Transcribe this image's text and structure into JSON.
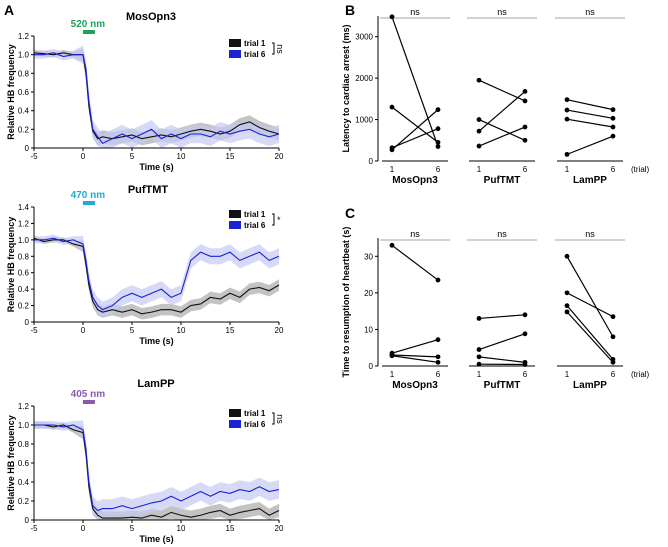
{
  "panels": [
    {
      "letter": "A"
    },
    {
      "letter": "B"
    },
    {
      "letter": "C"
    }
  ],
  "chart_data": [
    {
      "type": "line",
      "panel": "A",
      "title": "MosOpn3",
      "stimulus": {
        "label": "520 nm",
        "color": "#1fa35a"
      },
      "xlabel": "Time (s)",
      "ylabel": "Relative HB frequency",
      "xlim": [
        -5,
        20
      ],
      "ylim": [
        0,
        1.2
      ],
      "xticks": [
        "-5",
        "0",
        "5",
        "10",
        "15",
        "20"
      ],
      "yticks": [
        "0",
        "0.2",
        "0.4",
        "0.6",
        "0.8",
        "1.0",
        "1.2"
      ],
      "legend": [
        "trial 1",
        "trial 6"
      ],
      "significance": "ns",
      "series": [
        {
          "name": "trial 1",
          "color": "#111111",
          "band": "#aaaaaa",
          "x": [
            -5,
            -4,
            -3,
            -2,
            -1,
            0,
            0.3,
            0.6,
            1,
            1.5,
            2,
            3,
            4,
            5,
            6,
            7,
            8,
            9,
            10,
            11,
            12,
            13,
            14,
            15,
            16,
            17,
            18,
            19,
            20
          ],
          "y": [
            1.02,
            1.01,
            1.0,
            1.02,
            1.0,
            1.0,
            0.8,
            0.45,
            0.18,
            0.1,
            0.12,
            0.1,
            0.12,
            0.14,
            0.1,
            0.12,
            0.14,
            0.12,
            0.15,
            0.18,
            0.2,
            0.18,
            0.15,
            0.18,
            0.25,
            0.28,
            0.22,
            0.18,
            0.15
          ]
        },
        {
          "name": "trial 6",
          "color": "#1a22d6",
          "band": "#c5cbf3",
          "x": [
            -5,
            -4,
            -3,
            -2,
            -1,
            0,
            0.3,
            0.6,
            1,
            1.5,
            2,
            3,
            4,
            5,
            6,
            7,
            8,
            9,
            10,
            11,
            12,
            13,
            14,
            15,
            16,
            17,
            18,
            19,
            20
          ],
          "y": [
            1.0,
            1.0,
            1.02,
            0.98,
            1.0,
            1.0,
            0.85,
            0.5,
            0.2,
            0.12,
            0.05,
            0.1,
            0.15,
            0.1,
            0.15,
            0.2,
            0.1,
            0.15,
            0.1,
            0.15,
            0.15,
            0.12,
            0.18,
            0.15,
            0.18,
            0.2,
            0.15,
            0.12,
            0.15
          ]
        }
      ]
    },
    {
      "type": "line",
      "panel": "A",
      "title": "PufTMT",
      "stimulus": {
        "label": "470 nm",
        "color": "#21a9d8"
      },
      "xlabel": "Time (s)",
      "ylabel": "Relative HB frequency",
      "xlim": [
        -5,
        20
      ],
      "ylim": [
        0,
        1.4
      ],
      "xticks": [
        "-5",
        "0",
        "5",
        "10",
        "15",
        "20"
      ],
      "yticks": [
        "0",
        "0.2",
        "0.4",
        "0.6",
        "0.8",
        "1.0",
        "1.2",
        "1.4"
      ],
      "legend": [
        "trial 1",
        "trial 6"
      ],
      "significance": "*",
      "series": [
        {
          "name": "trial 1",
          "color": "#111111",
          "band": "#aaaaaa",
          "x": [
            -5,
            -4,
            -3,
            -2,
            -1,
            0,
            0.3,
            0.6,
            1,
            1.5,
            2,
            3,
            4,
            5,
            6,
            7,
            8,
            9,
            10,
            11,
            12,
            13,
            14,
            15,
            16,
            17,
            18,
            19,
            20
          ],
          "y": [
            1.02,
            0.98,
            1.0,
            1.0,
            0.95,
            0.92,
            0.7,
            0.45,
            0.25,
            0.15,
            0.12,
            0.15,
            0.12,
            0.15,
            0.1,
            0.12,
            0.15,
            0.15,
            0.12,
            0.2,
            0.22,
            0.3,
            0.28,
            0.35,
            0.3,
            0.4,
            0.42,
            0.38,
            0.45
          ]
        },
        {
          "name": "trial 6",
          "color": "#1a22d6",
          "band": "#c5cbf3",
          "x": [
            -5,
            -4,
            -3,
            -2,
            -1,
            0,
            0.3,
            0.6,
            1,
            1.5,
            2,
            3,
            4,
            5,
            6,
            7,
            8,
            9,
            10,
            11,
            12,
            13,
            14,
            15,
            16,
            17,
            18,
            19,
            20
          ],
          "y": [
            1.0,
            1.0,
            1.02,
            0.98,
            1.0,
            0.95,
            0.75,
            0.5,
            0.3,
            0.2,
            0.15,
            0.2,
            0.3,
            0.35,
            0.3,
            0.35,
            0.4,
            0.3,
            0.35,
            0.75,
            0.85,
            0.8,
            0.8,
            0.85,
            0.75,
            0.8,
            0.85,
            0.75,
            0.8
          ]
        }
      ]
    },
    {
      "type": "line",
      "panel": "A",
      "title": "LamPP",
      "stimulus": {
        "label": "405 nm",
        "color": "#8b5aa8"
      },
      "xlabel": "Time (s)",
      "ylabel": "Relative HB frequency",
      "xlim": [
        -5,
        20
      ],
      "ylim": [
        0,
        1.2
      ],
      "xticks": [
        "-5",
        "0",
        "5",
        "10",
        "15",
        "20"
      ],
      "yticks": [
        "0",
        "0.2",
        "0.4",
        "0.6",
        "0.8",
        "1.0",
        "1.2"
      ],
      "legend": [
        "trial 1",
        "trial 6"
      ],
      "significance": "ns",
      "series": [
        {
          "name": "trial 1",
          "color": "#111111",
          "band": "#aaaaaa",
          "x": [
            -5,
            -4,
            -3,
            -2,
            -1,
            0,
            0.3,
            0.6,
            1,
            1.5,
            2,
            3,
            4,
            5,
            6,
            7,
            8,
            9,
            10,
            11,
            12,
            13,
            14,
            15,
            16,
            17,
            18,
            19,
            20
          ],
          "y": [
            1.0,
            1.0,
            0.98,
            1.0,
            0.95,
            0.92,
            0.7,
            0.35,
            0.12,
            0.05,
            0.02,
            0.02,
            0.02,
            0.03,
            0.02,
            0.05,
            0.03,
            0.08,
            0.05,
            0.03,
            0.05,
            0.08,
            0.1,
            0.05,
            0.08,
            0.1,
            0.12,
            0.05,
            0.1
          ]
        },
        {
          "name": "trial 6",
          "color": "#1a22d6",
          "band": "#c5cbf3",
          "x": [
            -5,
            -4,
            -3,
            -2,
            -1,
            0,
            0.3,
            0.6,
            1,
            1.5,
            2,
            3,
            4,
            5,
            6,
            7,
            8,
            9,
            10,
            11,
            12,
            13,
            14,
            15,
            16,
            17,
            18,
            19,
            20
          ],
          "y": [
            1.0,
            1.0,
            1.0,
            0.98,
            1.0,
            0.95,
            0.75,
            0.4,
            0.15,
            0.1,
            0.12,
            0.12,
            0.15,
            0.12,
            0.15,
            0.18,
            0.2,
            0.25,
            0.2,
            0.25,
            0.3,
            0.25,
            0.3,
            0.28,
            0.32,
            0.3,
            0.35,
            0.3,
            0.32
          ]
        }
      ]
    },
    {
      "type": "paired-scatter",
      "panel": "B",
      "ylabel": "Latency to cardiac arrest (ms)",
      "ylim": [
        0,
        3500
      ],
      "yticks": [
        "0",
        "1000",
        "2000",
        "3000"
      ],
      "trial_labels": [
        "1",
        "6"
      ],
      "trial_axis_label": "(trial)",
      "groups": [
        {
          "name": "MosOpn3",
          "significance": "ns",
          "pairs": [
            [
              3480,
              350
            ],
            [
              1300,
              450
            ],
            [
              320,
              780
            ],
            [
              270,
              1240
            ]
          ]
        },
        {
          "name": "PufTMT",
          "significance": "ns",
          "pairs": [
            [
              1950,
              1450
            ],
            [
              1000,
              500
            ],
            [
              720,
              1680
            ],
            [
              360,
              820
            ]
          ]
        },
        {
          "name": "LamPP",
          "significance": "ns",
          "pairs": [
            [
              1480,
              1240
            ],
            [
              1230,
              1030
            ],
            [
              1010,
              820
            ],
            [
              160,
              600
            ]
          ]
        }
      ]
    },
    {
      "type": "paired-scatter",
      "panel": "C",
      "ylabel": "Time to resumption of heartbeat (s)",
      "ylim": [
        0,
        35
      ],
      "yticks": [
        "0",
        "10",
        "20",
        "30"
      ],
      "trial_labels": [
        "1",
        "6"
      ],
      "trial_axis_label": "(trial)",
      "groups": [
        {
          "name": "MosOpn3",
          "significance": "ns",
          "pairs": [
            [
              33,
              23.5
            ],
            [
              3.5,
              7.2
            ],
            [
              3.0,
              2.5
            ],
            [
              2.8,
              1.0
            ]
          ]
        },
        {
          "name": "PufTMT",
          "significance": "ns",
          "pairs": [
            [
              13,
              14
            ],
            [
              4.5,
              8.8
            ],
            [
              2.5,
              1.0
            ],
            [
              0.5,
              0.4
            ]
          ]
        },
        {
          "name": "LamPP",
          "significance": "ns",
          "pairs": [
            [
              30,
              8
            ],
            [
              20,
              13.5
            ],
            [
              16.5,
              1.8
            ],
            [
              14.8,
              1.0
            ]
          ]
        }
      ]
    }
  ]
}
